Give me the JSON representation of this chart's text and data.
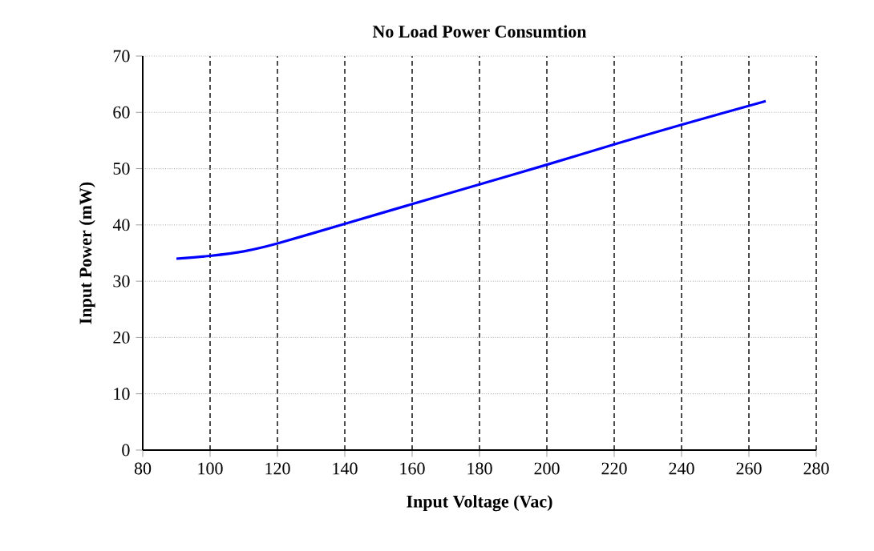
{
  "chart_data": {
    "type": "line",
    "title": "No Load Power Consumtion",
    "xlabel": "Input Voltage (Vac)",
    "ylabel": "Input Power (mW)",
    "x": [
      90,
      100,
      110,
      120,
      140,
      160,
      180,
      200,
      220,
      240,
      265
    ],
    "series": [
      {
        "color": "#0000ff",
        "values": [
          34,
          34.5,
          35.3,
          36.7,
          40.2,
          43.7,
          47.2,
          50.7,
          54.3,
          57.8,
          62
        ]
      }
    ],
    "xlim": [
      80,
      280
    ],
    "xticks": [
      80,
      100,
      120,
      140,
      160,
      180,
      200,
      220,
      240,
      260,
      280
    ],
    "ylim": [
      0,
      70
    ],
    "yticks": [
      0,
      10,
      20,
      30,
      40,
      50,
      60,
      70
    ],
    "grid": true,
    "marker": "none",
    "line_style": "solid"
  }
}
